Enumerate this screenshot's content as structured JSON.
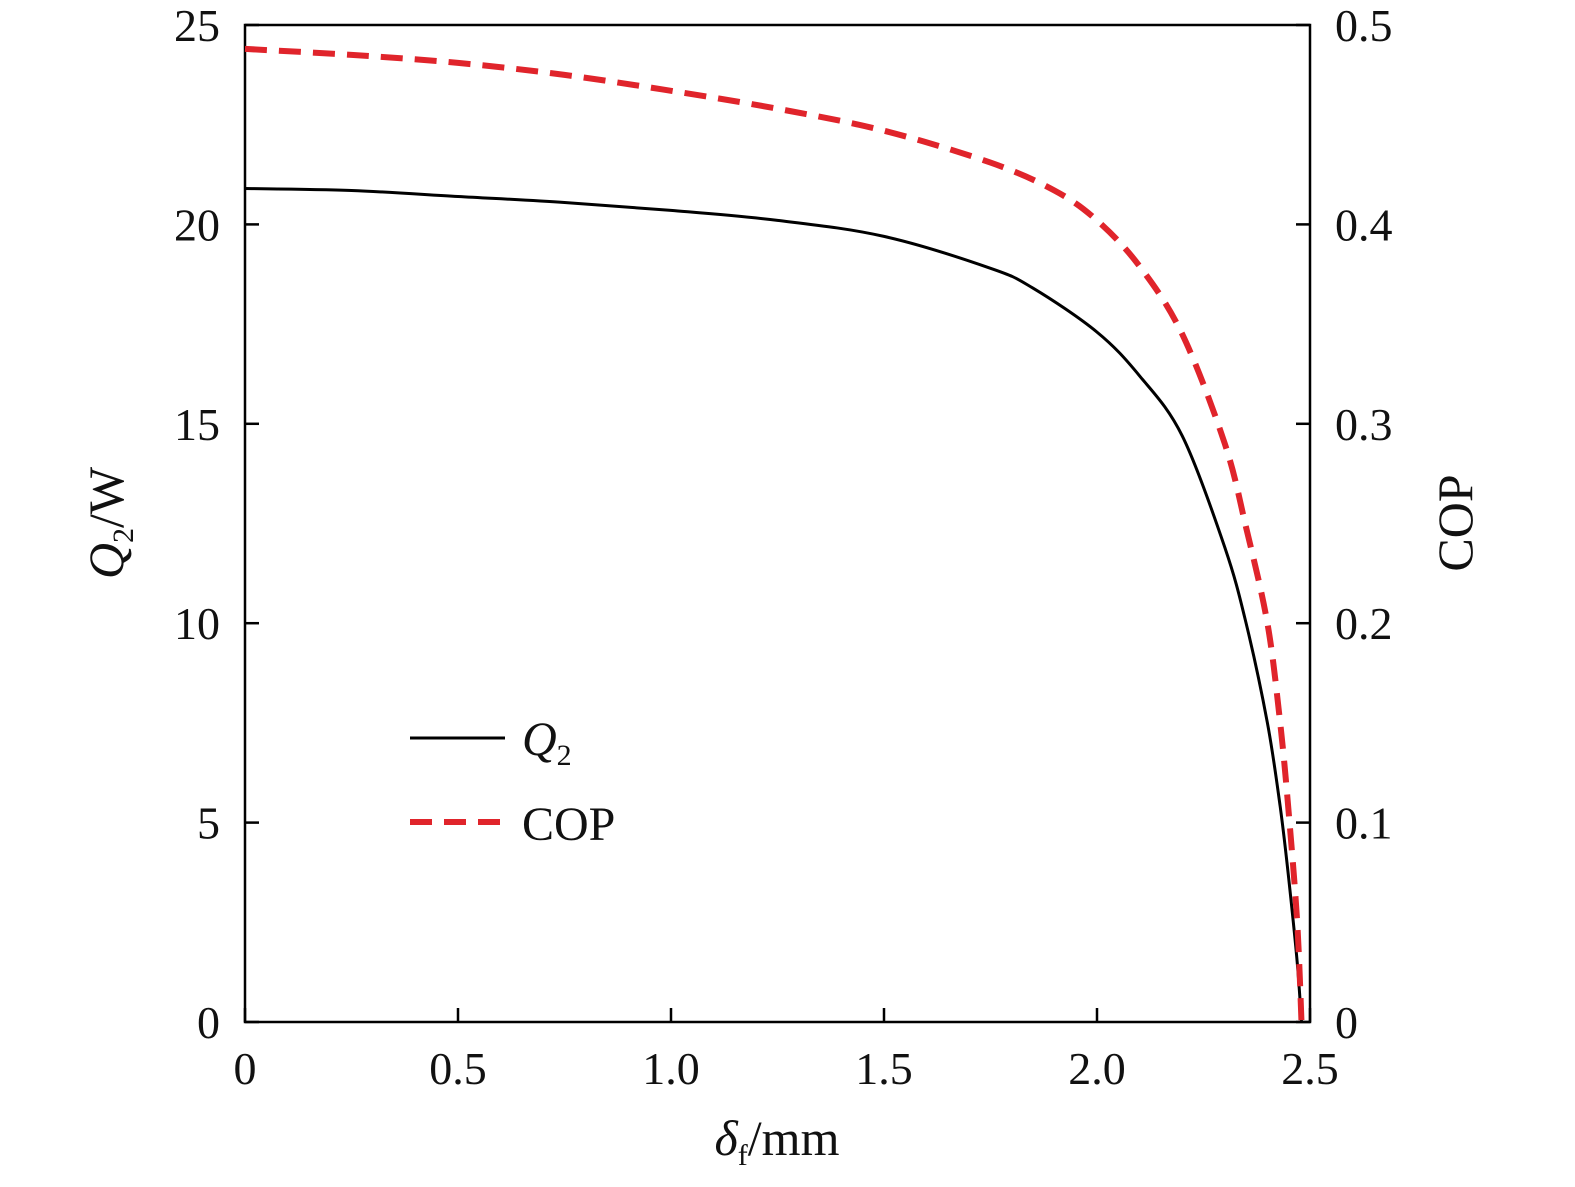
{
  "chart_data": {
    "type": "line",
    "title": "",
    "x_axis": {
      "label_symbol": "δ",
      "label_sub": "f",
      "label_unit": "/mm",
      "range": [
        0,
        2.5
      ],
      "ticks": [
        0,
        0.5,
        1.0,
        1.5,
        2.0,
        2.5
      ],
      "tick_labels": [
        "0",
        "0.5",
        "1.0",
        "1.5",
        "2.0",
        "2.5"
      ]
    },
    "y_left": {
      "label_symbol": "Q",
      "label_sub": "2",
      "label_unit": "/W",
      "range": [
        0,
        25
      ],
      "ticks": [
        0,
        5,
        10,
        15,
        20,
        25
      ],
      "tick_labels": [
        "0",
        "5",
        "10",
        "15",
        "20",
        "25"
      ]
    },
    "y_right": {
      "label": "COP",
      "range": [
        0,
        0.5
      ],
      "ticks": [
        0,
        0.1,
        0.2,
        0.3,
        0.4,
        0.5
      ],
      "tick_labels": [
        "0",
        "0.1",
        "0.2",
        "0.3",
        "0.4",
        "0.5"
      ]
    },
    "grid": false,
    "legend_position": "lower-left",
    "series": [
      {
        "name": "Q",
        "name_sub": "2",
        "axis": "left",
        "style": "solid",
        "color": "#000000",
        "x": [
          0,
          0.25,
          0.5,
          0.75,
          1.0,
          1.25,
          1.5,
          1.75,
          1.85,
          2.0,
          2.1,
          2.2,
          2.3,
          2.35,
          2.4,
          2.43,
          2.45,
          2.47,
          2.48
        ],
        "y": [
          20.9,
          20.85,
          20.7,
          20.55,
          20.35,
          20.1,
          19.7,
          18.9,
          18.4,
          17.3,
          16.2,
          14.7,
          11.9,
          10.0,
          7.5,
          5.4,
          3.6,
          1.5,
          0
        ]
      },
      {
        "name": "COP",
        "axis": "right",
        "style": "dashed",
        "color": "#e0242b",
        "x": [
          0,
          0.25,
          0.5,
          0.75,
          1.0,
          1.25,
          1.5,
          1.75,
          1.9,
          2.0,
          2.1,
          2.2,
          2.3,
          2.35,
          2.4,
          2.43,
          2.45,
          2.47,
          2.48
        ],
        "y": [
          0.488,
          0.485,
          0.481,
          0.475,
          0.467,
          0.458,
          0.447,
          0.431,
          0.417,
          0.402,
          0.379,
          0.345,
          0.29,
          0.248,
          0.2,
          0.15,
          0.105,
          0.05,
          0
        ]
      }
    ]
  }
}
